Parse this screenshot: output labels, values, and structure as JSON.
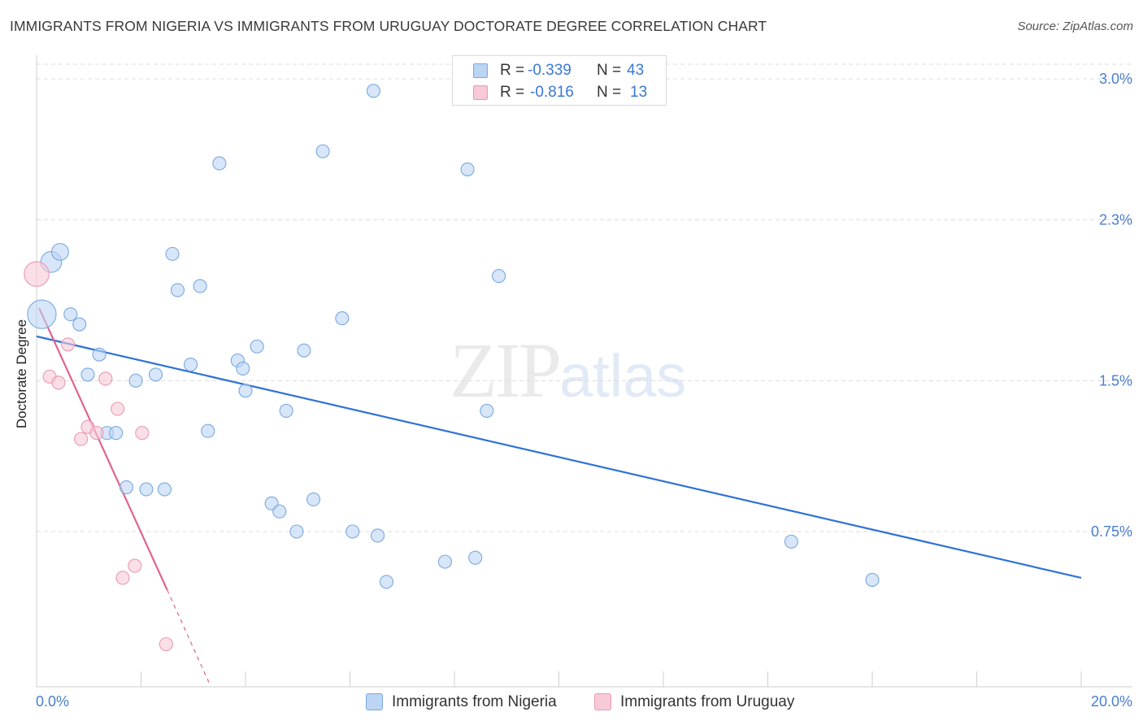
{
  "title": "IMMIGRANTS FROM NIGERIA VS IMMIGRANTS FROM URUGUAY DOCTORATE DEGREE CORRELATION CHART",
  "source": "Source: ZipAtlas.com",
  "watermark": {
    "zip": "ZIP",
    "atlas": "atlas"
  },
  "legend_stats": [
    {
      "r_label": "R =",
      "r_value": "-0.339",
      "n_label": "N =",
      "n_value": "43"
    },
    {
      "r_label": "R =",
      "r_value": "-0.816",
      "n_label": "N =",
      "n_value": "13"
    }
  ],
  "colors": {
    "nigeria_fill": "#bcd5f3",
    "nigeria_stroke": "#7aa8e2",
    "nigeria_line": "#2f72d6",
    "uruguay_fill": "#f8c9d7",
    "uruguay_stroke": "#ea98b4",
    "uruguay_line": "#e0638f",
    "grid": "#dcdcdc",
    "tick_text": "#4a7fd0"
  },
  "chart_data": {
    "type": "scatter",
    "title": "IMMIGRANTS FROM NIGERIA VS IMMIGRANTS FROM URUGUAY DOCTORATE DEGREE CORRELATION CHART",
    "xlabel": "",
    "ylabel": "Doctorate Degree",
    "xlim": [
      0,
      20
    ],
    "ylim": [
      0,
      3.15
    ],
    "x_tick_labels": [
      {
        "value": 0,
        "label": "0.0%"
      },
      {
        "value": 20,
        "label": "20.0%"
      }
    ],
    "y_tick_labels": [
      {
        "value": 0.75,
        "label": "0.75%"
      },
      {
        "value": 1.5,
        "label": "1.5%"
      },
      {
        "value": 2.3,
        "label": "2.3%"
      },
      {
        "value": 3.0,
        "label": "3.0%"
      }
    ],
    "grid": true,
    "legend_position": "bottom-center",
    "series": [
      {
        "name": "Immigrants from Nigeria",
        "r": -0.339,
        "n": 43,
        "trend": {
          "x0": 0.0,
          "y0": 1.72,
          "x1": 20.0,
          "y1": 0.52
        },
        "points": [
          {
            "x": 0.1,
            "y": 1.83,
            "s": 2.2
          },
          {
            "x": 0.28,
            "y": 2.09,
            "s": 1.6
          },
          {
            "x": 0.45,
            "y": 2.14,
            "s": 1.3
          },
          {
            "x": 0.65,
            "y": 1.83,
            "s": 1
          },
          {
            "x": 0.82,
            "y": 1.78,
            "s": 1
          },
          {
            "x": 1.2,
            "y": 1.63,
            "s": 1
          },
          {
            "x": 0.98,
            "y": 1.53,
            "s": 1
          },
          {
            "x": 1.35,
            "y": 1.24,
            "s": 1
          },
          {
            "x": 1.52,
            "y": 1.24,
            "s": 1
          },
          {
            "x": 1.72,
            "y": 0.97,
            "s": 1
          },
          {
            "x": 1.9,
            "y": 1.5,
            "s": 1
          },
          {
            "x": 2.1,
            "y": 0.96,
            "s": 1
          },
          {
            "x": 2.28,
            "y": 1.53,
            "s": 1
          },
          {
            "x": 2.45,
            "y": 0.96,
            "s": 1
          },
          {
            "x": 2.6,
            "y": 2.13,
            "s": 1
          },
          {
            "x": 2.7,
            "y": 1.95,
            "s": 1
          },
          {
            "x": 2.95,
            "y": 1.58,
            "s": 1
          },
          {
            "x": 3.13,
            "y": 1.97,
            "s": 1
          },
          {
            "x": 3.28,
            "y": 1.25,
            "s": 1
          },
          {
            "x": 3.5,
            "y": 2.58,
            "s": 1
          },
          {
            "x": 3.85,
            "y": 1.6,
            "s": 1
          },
          {
            "x": 3.95,
            "y": 1.56,
            "s": 1
          },
          {
            "x": 4.0,
            "y": 1.45,
            "s": 1
          },
          {
            "x": 4.22,
            "y": 1.67,
            "s": 1
          },
          {
            "x": 4.5,
            "y": 0.89,
            "s": 1
          },
          {
            "x": 4.65,
            "y": 0.85,
            "s": 1
          },
          {
            "x": 4.78,
            "y": 1.35,
            "s": 1
          },
          {
            "x": 4.98,
            "y": 0.75,
            "s": 1
          },
          {
            "x": 5.12,
            "y": 1.65,
            "s": 1
          },
          {
            "x": 5.3,
            "y": 0.91,
            "s": 1
          },
          {
            "x": 5.48,
            "y": 2.64,
            "s": 1
          },
          {
            "x": 5.85,
            "y": 1.81,
            "s": 1
          },
          {
            "x": 6.05,
            "y": 0.75,
            "s": 1
          },
          {
            "x": 6.45,
            "y": 2.94,
            "s": 1
          },
          {
            "x": 6.53,
            "y": 0.73,
            "s": 1
          },
          {
            "x": 6.7,
            "y": 0.5,
            "s": 1
          },
          {
            "x": 7.82,
            "y": 0.6,
            "s": 1
          },
          {
            "x": 8.25,
            "y": 2.55,
            "s": 1
          },
          {
            "x": 8.4,
            "y": 0.62,
            "s": 1
          },
          {
            "x": 8.62,
            "y": 1.35,
            "s": 1
          },
          {
            "x": 8.85,
            "y": 2.02,
            "s": 1
          },
          {
            "x": 14.45,
            "y": 0.7,
            "s": 1
          },
          {
            "x": 16.0,
            "y": 0.51,
            "s": 1
          }
        ]
      },
      {
        "name": "Immigrants from Uruguay",
        "r": -0.816,
        "n": 13,
        "trend": {
          "x0": 0.05,
          "y0": 1.86,
          "x1": 2.5,
          "y1": 0.46
        },
        "trend_dashed": {
          "x0": 2.5,
          "y0": 0.46,
          "x1": 3.3,
          "y1": 0.0
        },
        "points": [
          {
            "x": 0.0,
            "y": 2.03,
            "s": 1.9
          },
          {
            "x": 0.6,
            "y": 1.68,
            "s": 1
          },
          {
            "x": 0.25,
            "y": 1.52,
            "s": 1
          },
          {
            "x": 0.42,
            "y": 1.49,
            "s": 1
          },
          {
            "x": 1.32,
            "y": 1.51,
            "s": 1
          },
          {
            "x": 1.55,
            "y": 1.36,
            "s": 1
          },
          {
            "x": 0.98,
            "y": 1.27,
            "s": 1
          },
          {
            "x": 1.15,
            "y": 1.24,
            "s": 1
          },
          {
            "x": 0.85,
            "y": 1.21,
            "s": 1
          },
          {
            "x": 2.02,
            "y": 1.24,
            "s": 1
          },
          {
            "x": 1.88,
            "y": 0.58,
            "s": 1
          },
          {
            "x": 1.65,
            "y": 0.52,
            "s": 1
          },
          {
            "x": 2.48,
            "y": 0.19,
            "s": 1
          }
        ]
      }
    ]
  }
}
